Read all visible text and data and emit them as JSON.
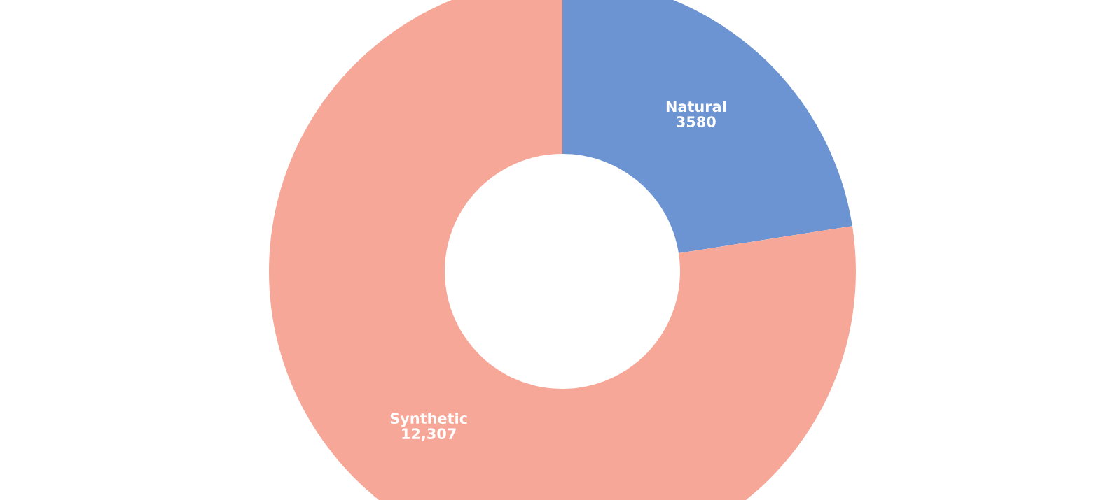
{
  "chart_data": {
    "type": "donut",
    "categories": [
      "Natural",
      "Synthetic"
    ],
    "values": [
      3580,
      12307
    ],
    "value_labels": [
      "3580",
      "12,307"
    ],
    "colors": [
      "#6c94d2",
      "#f6a797"
    ]
  }
}
